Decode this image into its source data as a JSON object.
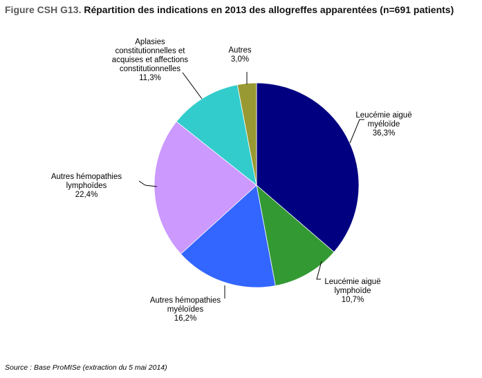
{
  "title": {
    "prefix": "Figure CSH G13.",
    "text": "Répartition des indications en 2013 des allogreffes apparentées (n=691 patients)"
  },
  "source": "Source : Base ProMISe (extraction du 5 mai 2014)",
  "chart_data": {
    "type": "pie",
    "title": "Répartition des indications en 2013 des allogreffes apparentées (n=691 patients)",
    "start": "12 o'clock",
    "direction": "clockwise",
    "slices": [
      {
        "label_lines": [
          "Leucémie aiguë",
          "myéloïde"
        ],
        "value": 36.3,
        "value_text": "36,3%",
        "color": "#000080"
      },
      {
        "label_lines": [
          "Leucémie aiguë",
          "lymphoïde"
        ],
        "value": 10.7,
        "value_text": "10,7%",
        "color": "#339933"
      },
      {
        "label_lines": [
          "Autres hémopathies",
          "myéloïdes"
        ],
        "value": 16.2,
        "value_text": "16,2%",
        "color": "#3366ff"
      },
      {
        "label_lines": [
          "Autres hémopathies",
          "lymphoïdes"
        ],
        "value": 22.4,
        "value_text": "22,4%",
        "color": "#cc99ff"
      },
      {
        "label_lines": [
          "Aplasies",
          "constitutionnelles et",
          "acquises et affections",
          "constitutionnelles"
        ],
        "value": 11.3,
        "value_text": "11,3%",
        "color": "#33cccc"
      },
      {
        "label_lines": [
          "Autres"
        ],
        "value": 3.0,
        "value_text": "3,0%",
        "color": "#999933"
      }
    ]
  }
}
